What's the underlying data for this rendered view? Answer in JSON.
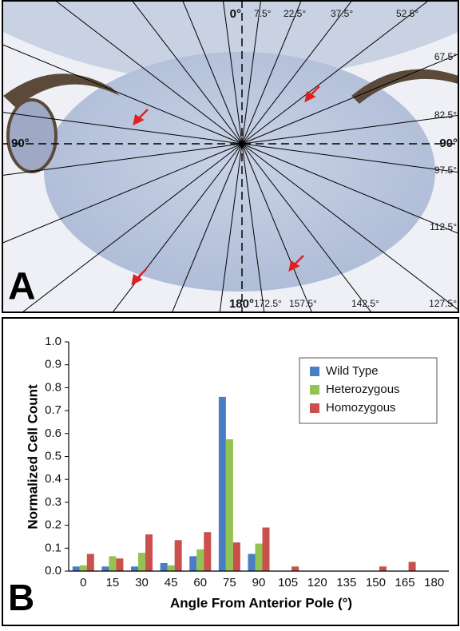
{
  "panel_a": {
    "label": "A",
    "angle_labels": [
      "0°",
      "7.5°",
      "22.5°",
      "37.5°",
      "52.5°",
      "67.5°",
      "82.5°",
      "90°",
      "97.5°",
      "112.5°",
      "127.5°",
      "142.5°",
      "157.5°",
      "172.5°",
      "180°",
      "90°"
    ]
  },
  "panel_b": {
    "label": "B"
  },
  "chart_data": {
    "type": "bar",
    "x_label": "Angle From Anterior Pole (°)",
    "y_label": "Normalized Cell Count",
    "categories": [
      "0",
      "15",
      "30",
      "45",
      "60",
      "75",
      "90",
      "105",
      "120",
      "135",
      "150",
      "165",
      "180"
    ],
    "series": [
      {
        "name": "Wild Type",
        "color": "#4a7dc4",
        "values": [
          0.02,
          0.02,
          0.02,
          0.035,
          0.065,
          0.76,
          0.075,
          0,
          0,
          0,
          0,
          0,
          0
        ]
      },
      {
        "name": "Heterozygous",
        "color": "#93c352",
        "values": [
          0.025,
          0.065,
          0.08,
          0.025,
          0.095,
          0.575,
          0.12,
          0,
          0,
          0,
          0,
          0,
          0
        ]
      },
      {
        "name": "Homozygous",
        "color": "#c9504b",
        "values": [
          0.075,
          0.055,
          0.16,
          0.135,
          0.17,
          0.125,
          0.19,
          0.02,
          0,
          0,
          0.02,
          0.04,
          0
        ]
      }
    ],
    "ylim": [
      0,
      1
    ],
    "yticks": [
      {
        "value": 0,
        "label": "0.0"
      },
      0.1,
      0.2,
      0.3,
      0.4,
      0.5,
      0.6,
      0.7,
      0.8,
      0.9,
      {
        "value": 1,
        "label": "1.0"
      }
    ],
    "legend": "upper right"
  }
}
